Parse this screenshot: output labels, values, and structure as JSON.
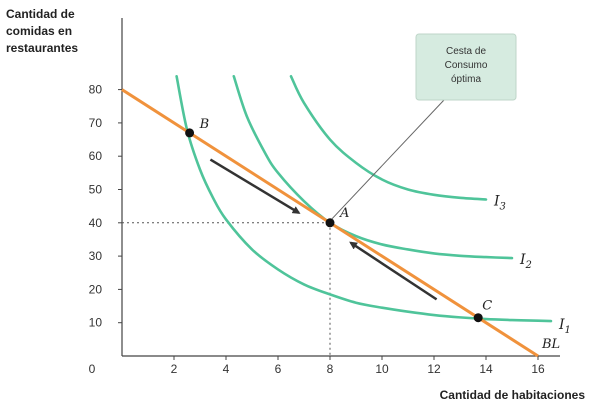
{
  "chart_data": {
    "type": "line",
    "xlabel": "Cantidad de habitaciones",
    "ylabel": "Cantidad de\ncomidas en\nrestaurantes",
    "xlim": [
      0,
      17
    ],
    "ylim": [
      0,
      90
    ],
    "x_ticks": [
      0,
      2,
      4,
      6,
      8,
      10,
      12,
      14,
      16
    ],
    "y_ticks": [
      10,
      20,
      30,
      40,
      50,
      60,
      70,
      80
    ],
    "budget_line": {
      "name": "BL",
      "points": [
        [
          0,
          80
        ],
        [
          16,
          0
        ]
      ],
      "color": "#f0923c"
    },
    "indifference_curves": [
      {
        "name": "I",
        "subscript": "1",
        "color": "#4fc49a",
        "points": [
          [
            2.1,
            84
          ],
          [
            2.5,
            68
          ],
          [
            3.0,
            56
          ],
          [
            3.5,
            47.5
          ],
          [
            4.0,
            41
          ],
          [
            5.0,
            32
          ],
          [
            6.0,
            26
          ],
          [
            7.0,
            21.5
          ],
          [
            8.0,
            18.5
          ],
          [
            9.0,
            16
          ],
          [
            10.0,
            14.5
          ],
          [
            11.0,
            13.3
          ],
          [
            12.0,
            12.3
          ],
          [
            13.0,
            11.6
          ],
          [
            14.0,
            11.1
          ],
          [
            15.0,
            10.8
          ],
          [
            16.0,
            10.6
          ],
          [
            16.5,
            10.5
          ]
        ]
      },
      {
        "name": "I",
        "subscript": "2",
        "color": "#4fc49a",
        "points": [
          [
            4.3,
            84
          ],
          [
            4.8,
            72
          ],
          [
            5.5,
            61
          ],
          [
            6.0,
            55
          ],
          [
            7.0,
            46.5
          ],
          [
            8.0,
            40
          ],
          [
            9.0,
            36
          ],
          [
            10.0,
            33.5
          ],
          [
            11.0,
            32
          ],
          [
            12.0,
            30.8
          ],
          [
            13.0,
            30.1
          ],
          [
            14.0,
            29.7
          ],
          [
            15.0,
            29.4
          ]
        ]
      },
      {
        "name": "I",
        "subscript": "3",
        "color": "#4fc49a",
        "points": [
          [
            6.5,
            84
          ],
          [
            7.0,
            76
          ],
          [
            8.0,
            65
          ],
          [
            9.0,
            58
          ],
          [
            10.0,
            53
          ],
          [
            11.0,
            50
          ],
          [
            12.0,
            48.4
          ],
          [
            13.0,
            47.5
          ],
          [
            14.0,
            47
          ]
        ]
      }
    ],
    "points": [
      {
        "label": "A",
        "x": 8,
        "y": 40
      },
      {
        "label": "B",
        "x": 2.6,
        "y": 67
      },
      {
        "label": "C",
        "x": 13.7,
        "y": 11.5
      }
    ],
    "annotation": {
      "text_lines": [
        "Cesta de",
        "Consumo",
        "óptima"
      ],
      "target": "A"
    },
    "arrows": [
      {
        "from": [
          3.4,
          59
        ],
        "to": [
          6.8,
          43
        ]
      },
      {
        "from": [
          12.1,
          17
        ],
        "to": [
          8.8,
          34
        ]
      }
    ]
  }
}
